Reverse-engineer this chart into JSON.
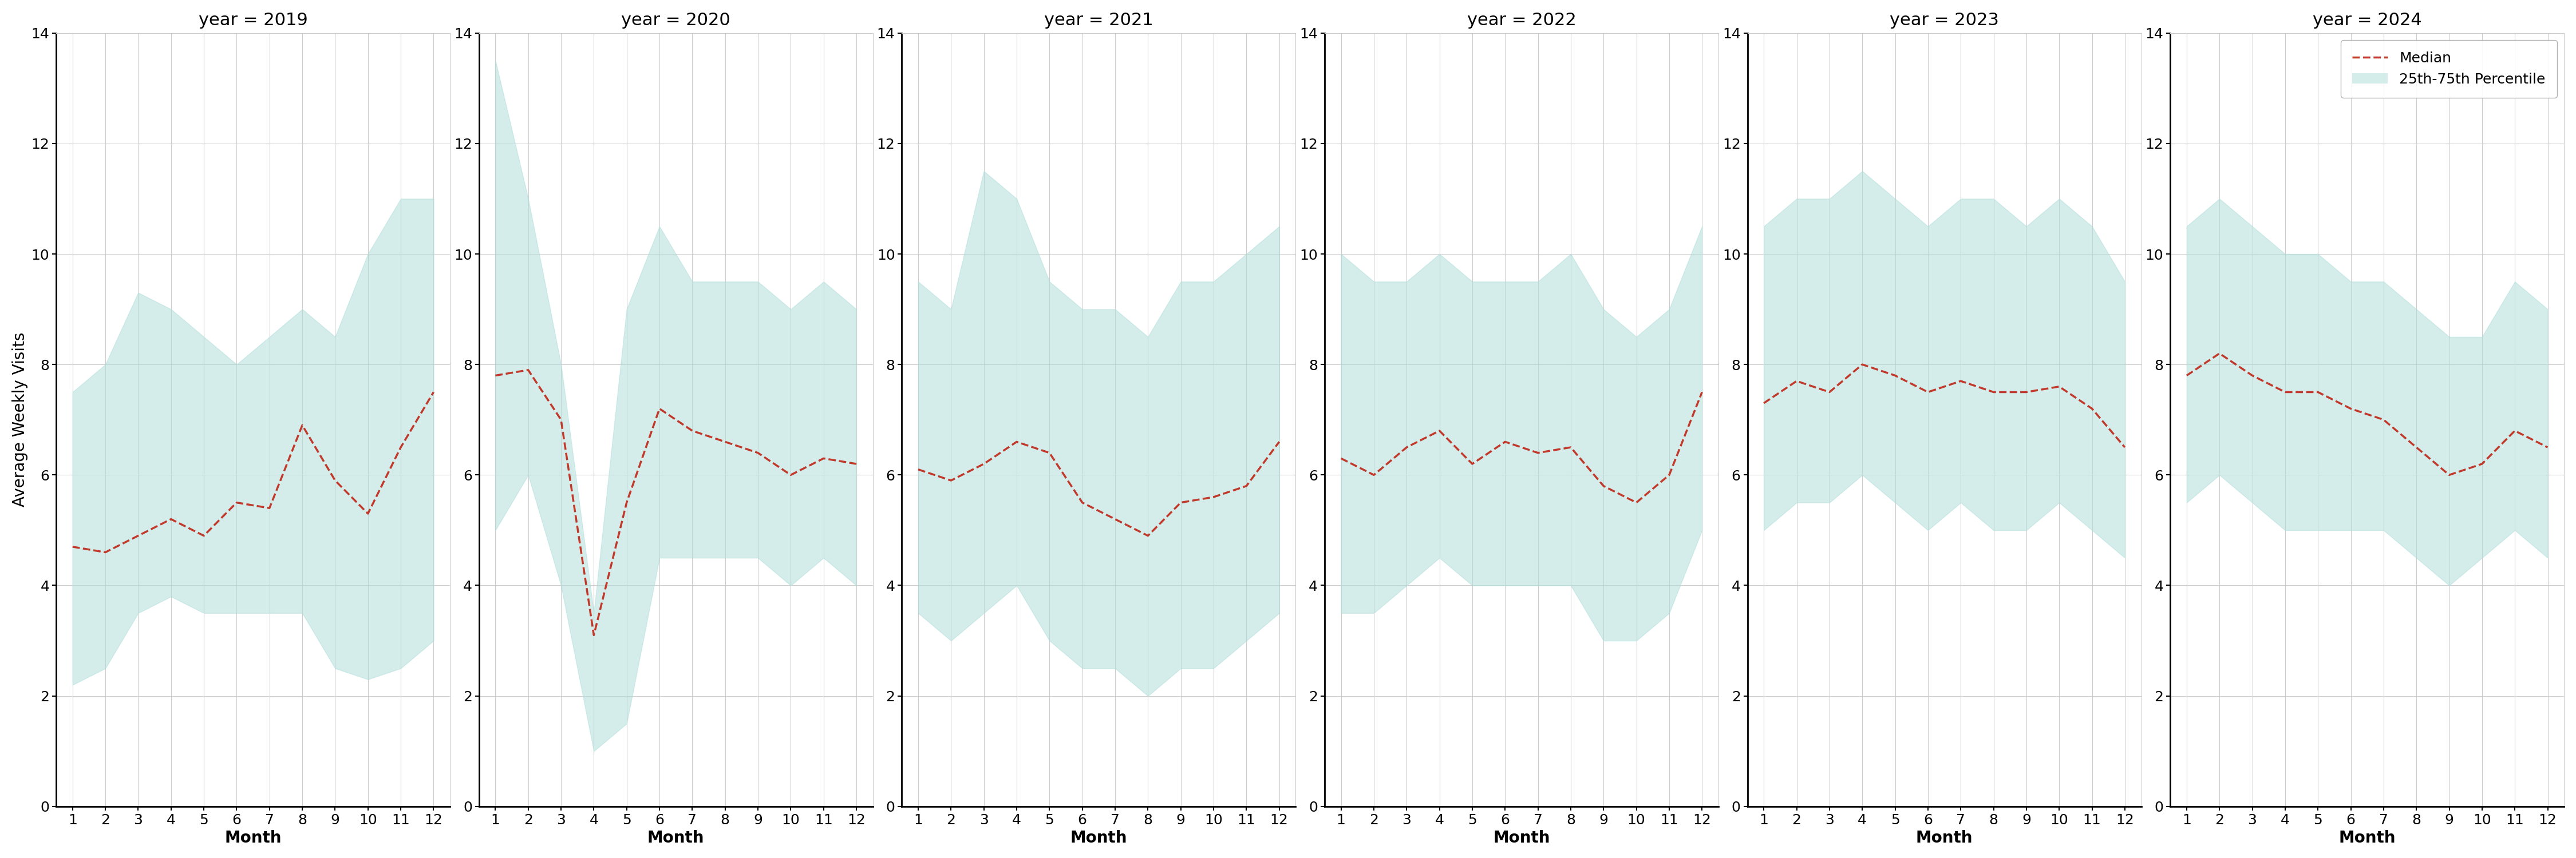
{
  "years": [
    2019,
    2020,
    2021,
    2022,
    2023,
    2024
  ],
  "months": [
    1,
    2,
    3,
    4,
    5,
    6,
    7,
    8,
    9,
    10,
    11,
    12
  ],
  "median": {
    "2019": [
      4.7,
      4.6,
      4.9,
      5.2,
      4.9,
      5.5,
      5.4,
      6.9,
      5.9,
      5.3,
      6.5,
      7.5
    ],
    "2020": [
      7.8,
      7.9,
      7.0,
      3.1,
      5.5,
      7.2,
      6.8,
      6.6,
      6.4,
      6.0,
      6.3,
      6.2
    ],
    "2021": [
      6.1,
      5.9,
      6.2,
      6.6,
      6.4,
      5.5,
      5.2,
      4.9,
      5.5,
      5.6,
      5.8,
      6.6
    ],
    "2022": [
      6.3,
      6.0,
      6.5,
      6.8,
      6.2,
      6.6,
      6.4,
      6.5,
      5.8,
      5.5,
      6.0,
      7.5
    ],
    "2023": [
      7.3,
      7.7,
      7.5,
      8.0,
      7.8,
      7.5,
      7.7,
      7.5,
      7.5,
      7.6,
      7.2,
      6.5
    ],
    "2024": [
      7.8,
      8.2,
      7.8,
      7.5,
      7.5,
      7.2,
      7.0,
      6.5,
      6.0,
      6.2,
      6.8,
      6.5
    ]
  },
  "p25": {
    "2019": [
      2.2,
      2.5,
      3.5,
      3.8,
      3.5,
      3.5,
      3.5,
      3.5,
      2.5,
      2.3,
      2.5,
      3.0
    ],
    "2020": [
      5.0,
      6.0,
      4.0,
      1.0,
      1.5,
      4.5,
      4.5,
      4.5,
      4.5,
      4.0,
      4.5,
      4.0
    ],
    "2021": [
      3.5,
      3.0,
      3.5,
      4.0,
      3.0,
      2.5,
      2.5,
      2.0,
      2.5,
      2.5,
      3.0,
      3.5
    ],
    "2022": [
      3.5,
      3.5,
      4.0,
      4.5,
      4.0,
      4.0,
      4.0,
      4.0,
      3.0,
      3.0,
      3.5,
      5.0
    ],
    "2023": [
      5.0,
      5.5,
      5.5,
      6.0,
      5.5,
      5.0,
      5.5,
      5.0,
      5.0,
      5.5,
      5.0,
      4.5
    ],
    "2024": [
      5.5,
      6.0,
      5.5,
      5.0,
      5.0,
      5.0,
      5.0,
      4.5,
      4.0,
      4.5,
      5.0,
      4.5
    ]
  },
  "p75": {
    "2019": [
      7.5,
      8.0,
      9.3,
      9.0,
      8.5,
      8.0,
      8.5,
      9.0,
      8.5,
      10.0,
      11.0,
      11.0
    ],
    "2020": [
      13.5,
      11.0,
      8.0,
      3.5,
      9.0,
      10.5,
      9.5,
      9.5,
      9.5,
      9.0,
      9.5,
      9.0
    ],
    "2021": [
      9.5,
      9.0,
      11.5,
      11.0,
      9.5,
      9.0,
      9.0,
      8.5,
      9.5,
      9.5,
      10.0,
      10.5
    ],
    "2022": [
      10.0,
      9.5,
      9.5,
      10.0,
      9.5,
      9.5,
      9.5,
      10.0,
      9.0,
      8.5,
      9.0,
      10.5
    ],
    "2023": [
      10.5,
      11.0,
      11.0,
      11.5,
      11.0,
      10.5,
      11.0,
      11.0,
      10.5,
      11.0,
      10.5,
      9.5
    ],
    "2024": [
      10.5,
      11.0,
      10.5,
      10.0,
      10.0,
      9.5,
      9.5,
      9.0,
      8.5,
      8.5,
      9.5,
      9.0
    ]
  },
  "fill_color": "#b2dfdb",
  "fill_alpha": 0.55,
  "line_color": "#c0392b",
  "line_style": "--",
  "line_width": 2.5,
  "ylabel": "Average Weekly Visits",
  "xlabel": "Month",
  "ylim": [
    0,
    14
  ],
  "yticks": [
    0,
    2,
    4,
    6,
    8,
    10,
    12,
    14
  ],
  "xticks": [
    1,
    2,
    3,
    4,
    5,
    6,
    7,
    8,
    9,
    10,
    11,
    12
  ],
  "bg_color": "#ffffff",
  "grid_color": "#cccccc",
  "legend_labels": [
    "Median",
    "25th-75th Percentile"
  ],
  "title_fontsize": 22,
  "label_fontsize": 20,
  "tick_fontsize": 18,
  "legend_fontsize": 18
}
